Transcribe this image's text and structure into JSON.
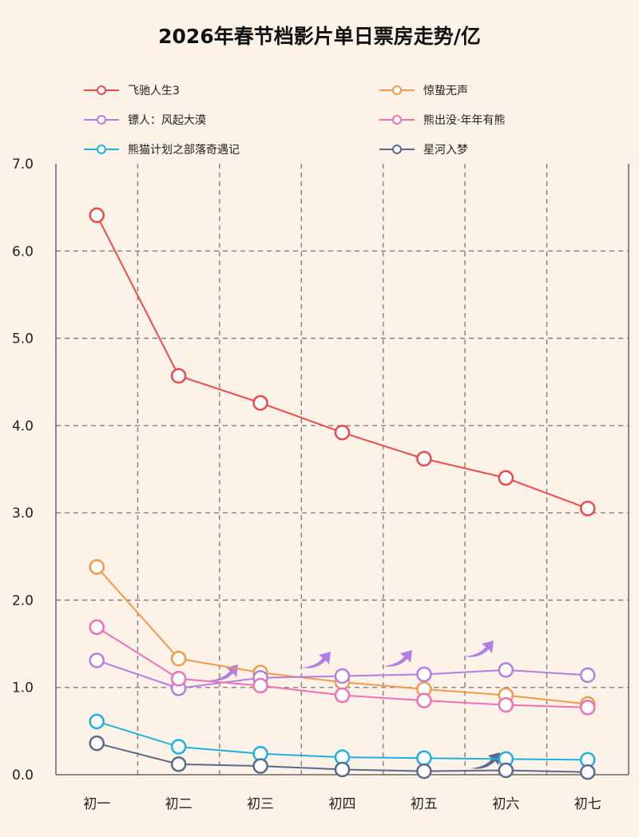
{
  "chart_data": {
    "type": "line",
    "title": "2026年春节档影片单日票房走势/亿",
    "xlabel": "",
    "ylabel": "",
    "categories": [
      "初一",
      "初二",
      "初三",
      "初四",
      "初五",
      "初六",
      "初七"
    ],
    "ylim": [
      0,
      7
    ],
    "yticks": [
      "0.0",
      "1.0",
      "2.0",
      "3.0",
      "4.0",
      "5.0",
      "6.0",
      "7.0"
    ],
    "grid": true,
    "legend_position": "top",
    "series": [
      {
        "name": "飞驰人生3",
        "color": "#ee4a4a",
        "values": [
          6.41,
          4.57,
          4.26,
          3.92,
          3.62,
          3.4,
          3.05
        ]
      },
      {
        "name": "惊蛰无声",
        "color": "#f39a4a",
        "values": [
          2.38,
          1.33,
          1.17,
          1.06,
          0.98,
          0.91,
          0.81
        ]
      },
      {
        "name": "镖人：风起大漠",
        "color": "#b07fe0",
        "values": [
          1.31,
          0.99,
          1.11,
          1.13,
          1.15,
          1.2,
          1.14
        ]
      },
      {
        "name": "熊出没·年年有熊",
        "color": "#f070b5",
        "values": [
          1.69,
          1.1,
          1.02,
          0.91,
          0.85,
          0.8,
          0.77
        ]
      },
      {
        "name": "熊猫计划之部落奇遇记",
        "color": "#1fb0e0",
        "values": [
          0.61,
          0.32,
          0.24,
          0.2,
          0.19,
          0.18,
          0.17
        ]
      },
      {
        "name": "星河入梦",
        "color": "#5a6a8a",
        "values": [
          0.36,
          0.12,
          0.1,
          0.06,
          0.04,
          0.05,
          0.03
        ]
      }
    ]
  }
}
